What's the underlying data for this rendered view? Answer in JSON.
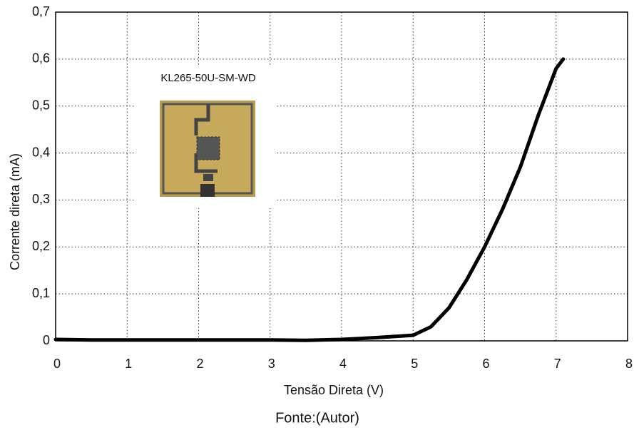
{
  "chart_data": {
    "type": "line",
    "xlabel": "Tensão Direta (V)",
    "ylabel": "Corrente direta (mA)",
    "annotation": "KL265-50U-SM-WD",
    "caption": "Fonte:(Autor)",
    "x": [
      0,
      0.5,
      1,
      1.5,
      2,
      2.5,
      3,
      3.5,
      4,
      4.5,
      5,
      5.25,
      5.5,
      5.75,
      6,
      6.25,
      6.5,
      6.75,
      7,
      7.1
    ],
    "values": [
      0.003,
      0.002,
      0.002,
      0.002,
      0.002,
      0.002,
      0.002,
      0.001,
      0.003,
      0.007,
      0.012,
      0.03,
      0.07,
      0.13,
      0.2,
      0.28,
      0.37,
      0.48,
      0.58,
      0.6
    ],
    "color": "#000000",
    "xlim": [
      0,
      8
    ],
    "xticks": [
      0,
      1,
      2,
      3,
      4,
      5,
      6,
      7,
      8
    ],
    "ylim": [
      0,
      0.7
    ],
    "yticks": [
      0,
      {
        "value": 0.1,
        "label": "0,1"
      },
      {
        "value": 0.2,
        "label": "0,2"
      },
      {
        "value": 0.3,
        "label": "0,3"
      },
      {
        "value": 0.4,
        "label": "0,4"
      },
      {
        "value": 0.5,
        "label": "0,5"
      },
      {
        "value": 0.6,
        "label": "0,6"
      },
      {
        "value": 0.7,
        "label": "0,7"
      }
    ],
    "grid": true
  }
}
